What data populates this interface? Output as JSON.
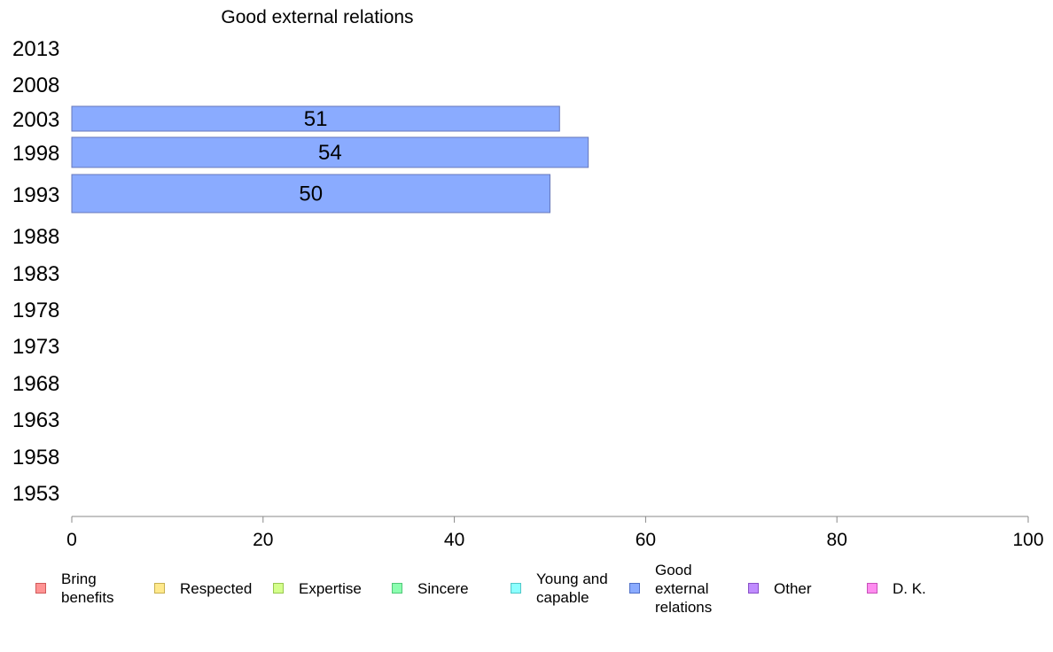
{
  "chart_data": {
    "type": "bar",
    "orientation": "horizontal",
    "title": "Good external relations",
    "categories": [
      "2013",
      "2008",
      "2003",
      "1998",
      "1993",
      "1988",
      "1983",
      "1978",
      "1973",
      "1968",
      "1963",
      "1958",
      "1953"
    ],
    "series": [
      {
        "name": "Good external relations",
        "color": "#8aabff",
        "values": [
          null,
          null,
          51,
          54,
          50,
          null,
          null,
          null,
          null,
          null,
          null,
          null,
          null
        ]
      }
    ],
    "xlim": [
      0,
      100
    ],
    "xticks": [
      "0",
      "20",
      "40",
      "60",
      "80",
      "100"
    ],
    "grid": false,
    "legend_position": "bottom",
    "legend": [
      {
        "label": "Bring\nbenefits",
        "fill": "#ff9393",
        "stroke": "#d05a5a"
      },
      {
        "label": "Respected",
        "fill": "#ffe98c",
        "stroke": "#c8b050"
      },
      {
        "label": "Expertise",
        "fill": "#d4ff8c",
        "stroke": "#98c850"
      },
      {
        "label": "Sincere",
        "fill": "#8cffb0",
        "stroke": "#50c878"
      },
      {
        "label": "Young and\ncapable",
        "fill": "#8cffff",
        "stroke": "#50c8c8"
      },
      {
        "label": "Good\nexternal\nrelations",
        "fill": "#8aabff",
        "stroke": "#5070c8"
      },
      {
        "label": "Other",
        "fill": "#c08cff",
        "stroke": "#8850c8"
      },
      {
        "label": "D. K.",
        "fill": "#ff8cf0",
        "stroke": "#c850b8"
      }
    ]
  }
}
